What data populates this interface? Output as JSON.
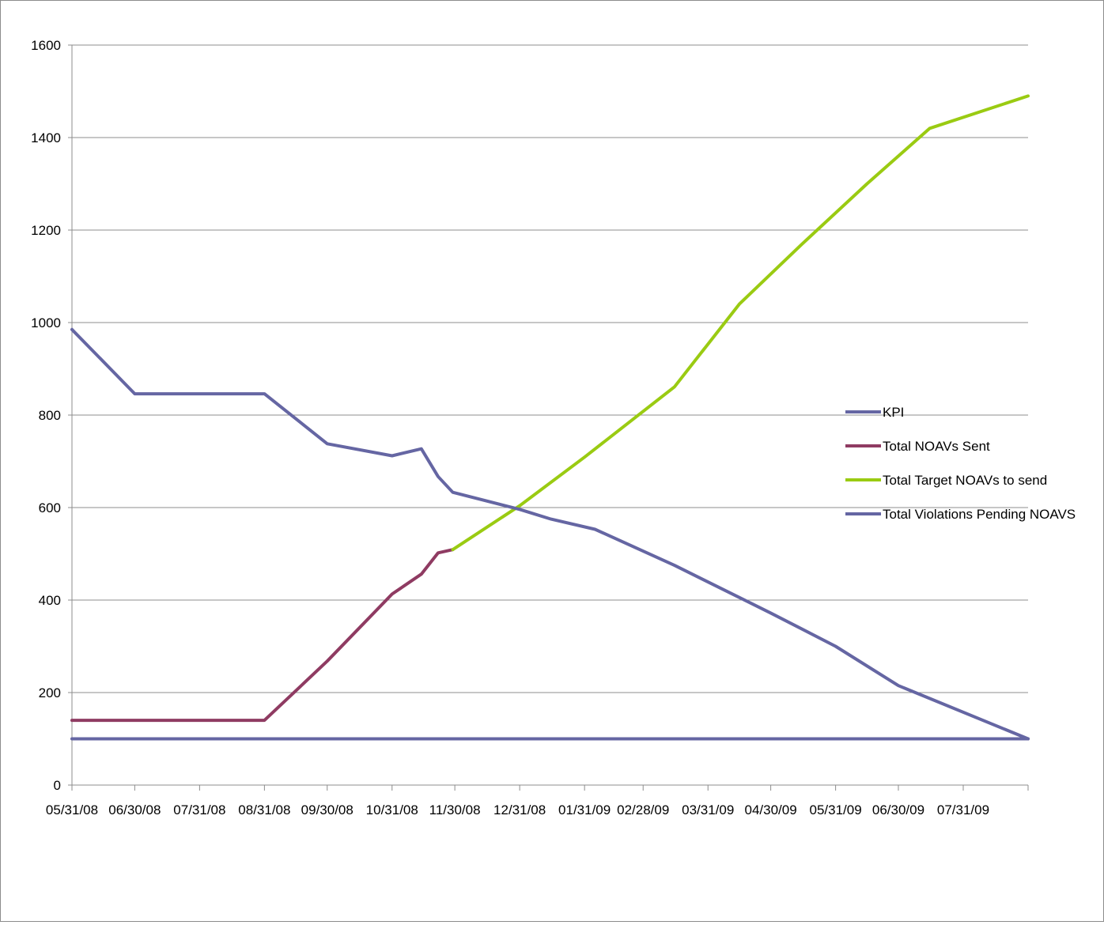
{
  "chart_data": {
    "type": "line",
    "title": "",
    "xlabel": "",
    "ylabel": "",
    "x_tick_labels": [
      "05/31/08",
      "06/30/08",
      "07/31/08",
      "08/31/08",
      "09/30/08",
      "10/31/08",
      "11/30/08",
      "12/31/08",
      "01/31/09",
      "02/28/09",
      "03/31/09",
      "04/30/09",
      "05/31/09",
      "06/30/09",
      "07/31/09"
    ],
    "x_date_ticks": [
      "2008-05-31",
      "2008-06-30",
      "2008-07-31",
      "2008-08-31",
      "2008-09-30",
      "2008-10-31",
      "2008-11-30",
      "2008-12-31",
      "2009-01-31",
      "2009-02-28",
      "2009-03-31",
      "2009-04-30",
      "2009-05-31",
      "2009-06-30",
      "2009-07-31"
    ],
    "xlim": [
      "2008-05-31",
      "2009-08-31"
    ],
    "ylim": [
      0,
      1600
    ],
    "y_ticks": [
      0,
      200,
      400,
      600,
      800,
      1000,
      1200,
      1400,
      1600
    ],
    "grid": "horizontal",
    "legend_position": "right",
    "series": [
      {
        "name": "KPI",
        "color": "#6566a3",
        "points": [
          [
            "2008-05-31",
            100
          ],
          [
            "2009-08-31",
            100
          ]
        ]
      },
      {
        "name": "Total NOAVs Sent",
        "color": "#8f3b62",
        "points": [
          [
            "2008-05-31",
            140
          ],
          [
            "2008-06-30",
            140
          ],
          [
            "2008-07-31",
            140
          ],
          [
            "2008-08-31",
            140
          ],
          [
            "2008-09-30",
            268
          ],
          [
            "2008-10-31",
            413
          ],
          [
            "2008-11-14",
            456
          ],
          [
            "2008-11-22",
            502
          ],
          [
            "2008-11-29",
            509
          ]
        ]
      },
      {
        "name": "Total Target NOAVs to send",
        "color": "#9acb12",
        "points": [
          [
            "2008-11-29",
            509
          ],
          [
            "2008-12-31",
            604
          ],
          [
            "2009-01-31",
            709
          ],
          [
            "2009-03-15",
            861
          ],
          [
            "2009-04-15",
            1040
          ],
          [
            "2009-05-15",
            1170
          ],
          [
            "2009-06-15",
            1300
          ],
          [
            "2009-07-15",
            1420
          ],
          [
            "2009-08-31",
            1490
          ]
        ]
      },
      {
        "name": "Total Violations Pending NOAVS",
        "color": "#6566a3",
        "points": [
          [
            "2008-05-31",
            985
          ],
          [
            "2008-06-30",
            846
          ],
          [
            "2008-07-31",
            846
          ],
          [
            "2008-08-31",
            846
          ],
          [
            "2008-09-30",
            738
          ],
          [
            "2008-10-31",
            712
          ],
          [
            "2008-11-14",
            727
          ],
          [
            "2008-11-22",
            667
          ],
          [
            "2008-11-29",
            633
          ],
          [
            "2008-12-31",
            596
          ],
          [
            "2009-01-15",
            575
          ],
          [
            "2009-02-05",
            553
          ],
          [
            "2009-03-15",
            475
          ],
          [
            "2009-04-30",
            372
          ],
          [
            "2009-05-31",
            300
          ],
          [
            "2009-06-30",
            215
          ],
          [
            "2009-08-31",
            100
          ]
        ]
      }
    ]
  }
}
